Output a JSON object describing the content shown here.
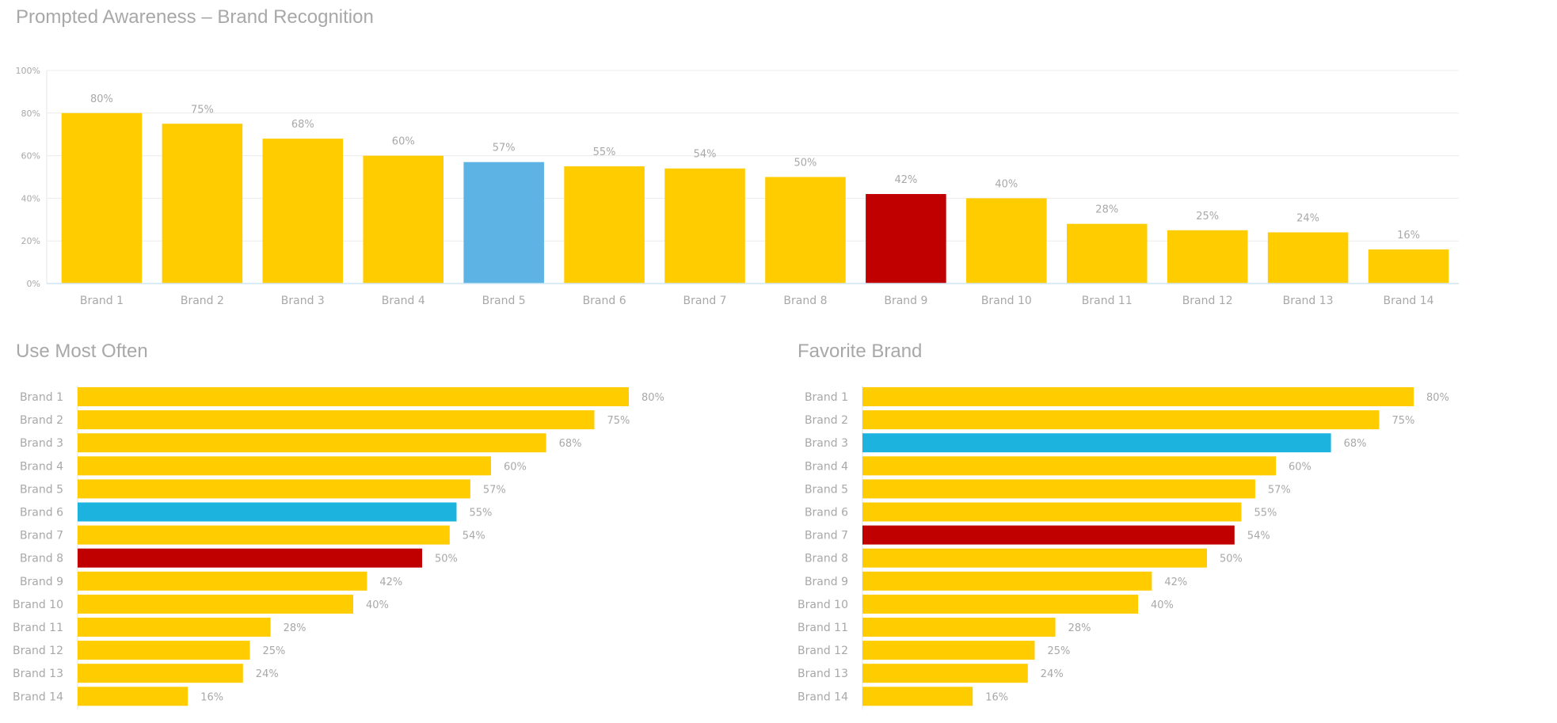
{
  "chart_data": [
    {
      "type": "bar",
      "title": "Prompted Awareness – Brand Recognition",
      "categories": [
        "Brand 1",
        "Brand 2",
        "Brand 3",
        "Brand 4",
        "Brand 5",
        "Brand 6",
        "Brand 7",
        "Brand 8",
        "Brand 9",
        "Brand 10",
        "Brand 11",
        "Brand 12",
        "Brand 13",
        "Brand 14"
      ],
      "values": [
        80,
        75,
        68,
        60,
        57,
        55,
        54,
        50,
        42,
        40,
        28,
        25,
        24,
        16
      ],
      "value_labels": [
        "80%",
        "75%",
        "68%",
        "60%",
        "57%",
        "55%",
        "54%",
        "50%",
        "42%",
        "40%",
        "28%",
        "25%",
        "24%",
        "16%"
      ],
      "colors": [
        "#ffcc00",
        "#ffcc00",
        "#ffcc00",
        "#ffcc00",
        "#5db3e3",
        "#ffcc00",
        "#ffcc00",
        "#ffcc00",
        "#c00000",
        "#ffcc00",
        "#ffcc00",
        "#ffcc00",
        "#ffcc00",
        "#ffcc00"
      ],
      "yticks": [
        "0%",
        "20%",
        "40%",
        "60%",
        "80%",
        "100%"
      ],
      "ylim": [
        0,
        100
      ],
      "grid": true,
      "orientation": "vertical"
    },
    {
      "type": "bar",
      "title": "Use Most Often",
      "categories": [
        "Brand 1",
        "Brand 2",
        "Brand 3",
        "Brand 4",
        "Brand 5",
        "Brand 6",
        "Brand 7",
        "Brand 8",
        "Brand 9",
        "Brand 10",
        "Brand 11",
        "Brand 12",
        "Brand 13",
        "Brand 14"
      ],
      "values": [
        80,
        75,
        68,
        60,
        57,
        55,
        54,
        50,
        42,
        40,
        28,
        25,
        24,
        16
      ],
      "value_labels": [
        "80%",
        "75%",
        "68%",
        "60%",
        "57%",
        "55%",
        "54%",
        "50%",
        "42%",
        "40%",
        "28%",
        "25%",
        "24%",
        "16%"
      ],
      "colors": [
        "#ffcc00",
        "#ffcc00",
        "#ffcc00",
        "#ffcc00",
        "#ffcc00",
        "#1cb4df",
        "#ffcc00",
        "#c00000",
        "#ffcc00",
        "#ffcc00",
        "#ffcc00",
        "#ffcc00",
        "#ffcc00",
        "#ffcc00"
      ],
      "orientation": "horizontal"
    },
    {
      "type": "bar",
      "title": "Favorite Brand",
      "categories": [
        "Brand 1",
        "Brand 2",
        "Brand 3",
        "Brand 4",
        "Brand 5",
        "Brand 6",
        "Brand 7",
        "Brand 8",
        "Brand 9",
        "Brand 10",
        "Brand 11",
        "Brand 12",
        "Brand 13",
        "Brand 14"
      ],
      "values": [
        80,
        75,
        68,
        60,
        57,
        55,
        54,
        50,
        42,
        40,
        28,
        25,
        24,
        16
      ],
      "value_labels": [
        "80%",
        "75%",
        "68%",
        "60%",
        "57%",
        "55%",
        "54%",
        "50%",
        "42%",
        "40%",
        "28%",
        "25%",
        "24%",
        "16%"
      ],
      "colors": [
        "#ffcc00",
        "#ffcc00",
        "#1cb4df",
        "#ffcc00",
        "#ffcc00",
        "#ffcc00",
        "#c00000",
        "#ffcc00",
        "#ffcc00",
        "#ffcc00",
        "#ffcc00",
        "#ffcc00",
        "#ffcc00",
        "#ffcc00"
      ],
      "orientation": "horizontal"
    }
  ]
}
